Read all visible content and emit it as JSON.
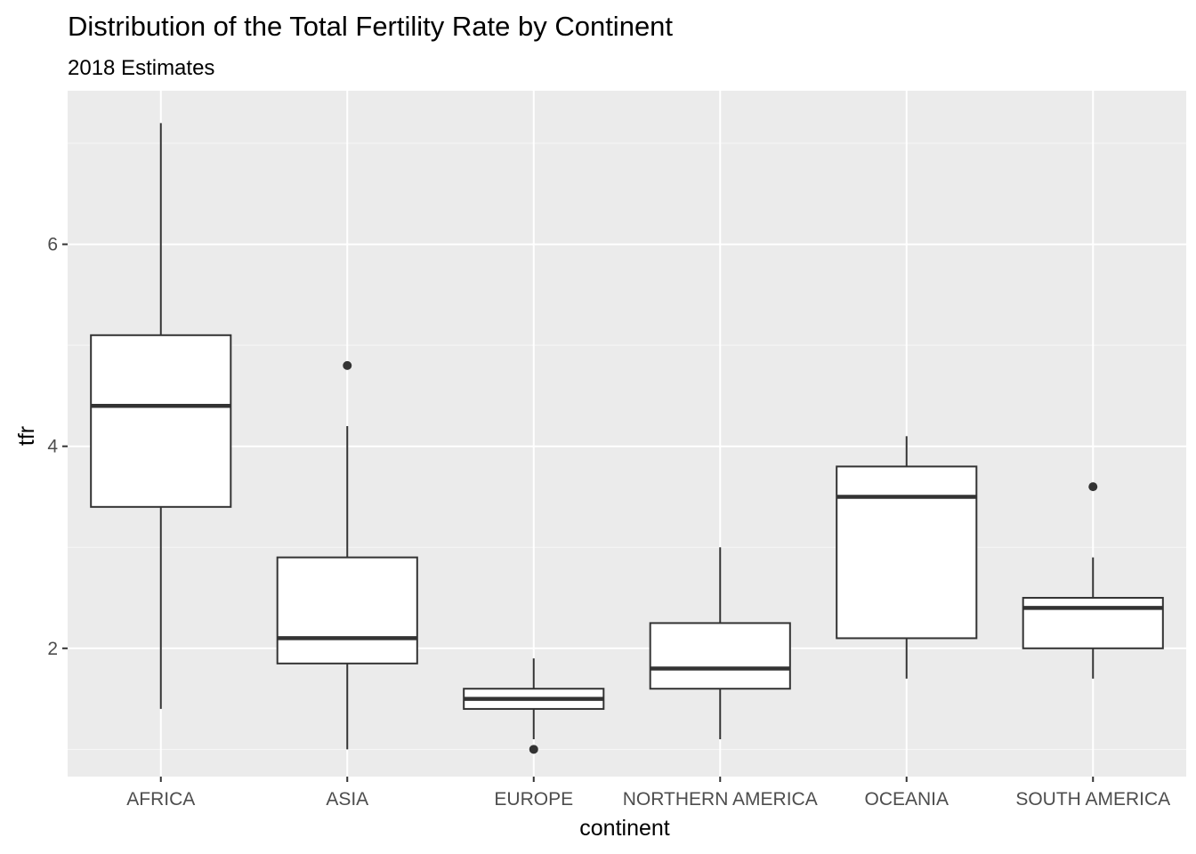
{
  "chart_data": {
    "type": "boxplot",
    "title": "Distribution of the Total Fertility Rate by Continent",
    "subtitle": "2018 Estimates",
    "xlabel": "continent",
    "ylabel": "tfr",
    "ylim": [
      0.73,
      7.52
    ],
    "yticks": [
      2,
      4,
      6
    ],
    "y_minor_ticks": [
      1,
      3,
      5,
      7
    ],
    "grid": true,
    "categories": [
      "AFRICA",
      "ASIA",
      "EUROPE",
      "NORTHERN AMERICA",
      "OCEANIA",
      "SOUTH AMERICA"
    ],
    "boxes": [
      {
        "category": "AFRICA",
        "lower_whisker": 1.4,
        "q1": 3.4,
        "median": 4.4,
        "q3": 5.1,
        "upper_whisker": 7.2,
        "outliers": []
      },
      {
        "category": "ASIA",
        "lower_whisker": 1.0,
        "q1": 1.85,
        "median": 2.1,
        "q3": 2.9,
        "upper_whisker": 4.2,
        "outliers": [
          4.8
        ]
      },
      {
        "category": "EUROPE",
        "lower_whisker": 1.1,
        "q1": 1.4,
        "median": 1.5,
        "q3": 1.6,
        "upper_whisker": 1.9,
        "outliers": [
          1.0
        ]
      },
      {
        "category": "NORTHERN AMERICA",
        "lower_whisker": 1.1,
        "q1": 1.6,
        "median": 1.8,
        "q3": 2.25,
        "upper_whisker": 3.0,
        "outliers": []
      },
      {
        "category": "OCEANIA",
        "lower_whisker": 1.7,
        "q1": 2.1,
        "median": 3.5,
        "q3": 3.8,
        "upper_whisker": 4.1,
        "outliers": []
      },
      {
        "category": "SOUTH AMERICA",
        "lower_whisker": 1.7,
        "q1": 2.0,
        "median": 2.4,
        "q3": 2.5,
        "upper_whisker": 2.9,
        "outliers": [
          3.6
        ]
      }
    ],
    "colors": {
      "panel_background": "#ebebeb",
      "grid_major": "#ffffff",
      "grid_minor": "#f7f7f7",
      "box_fill": "#ffffff",
      "box_stroke": "#333333",
      "tick_text": "#4d4d4d"
    }
  }
}
